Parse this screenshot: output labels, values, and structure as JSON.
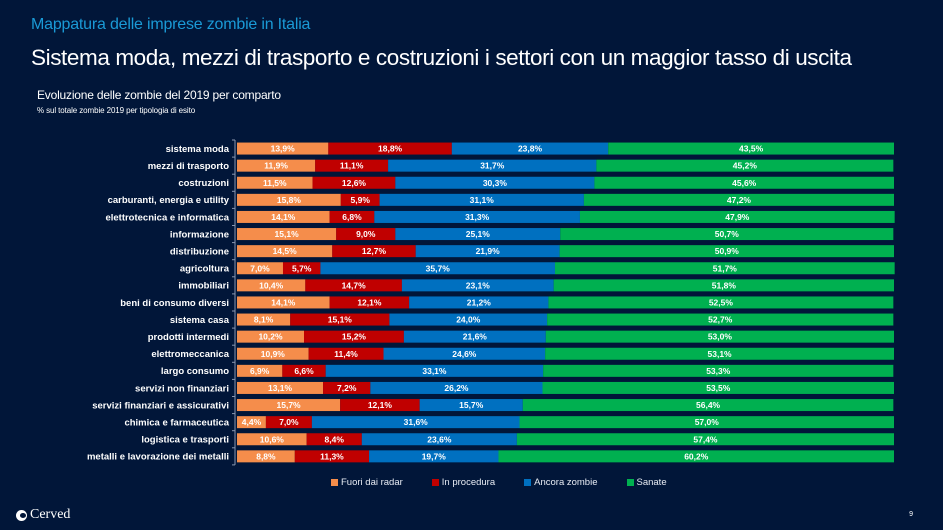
{
  "header": {
    "kicker": "Mappatura delle imprese zombie in Italia",
    "headline": "Sistema moda, mezzi di trasporto e costruzioni i settori con un maggior tasso di uscita"
  },
  "chart_data": {
    "type": "bar",
    "orientation": "horizontal",
    "stacked": "100%",
    "title": "Evoluzione delle zombie del 2019  per comparto",
    "subtitle": "% sul totale zombie 2019 per tipologia di esito",
    "xlabel": "",
    "ylabel": "",
    "xlim": [
      0,
      100
    ],
    "grid": false,
    "legend_position": "bottom",
    "categories": [
      "sistema moda",
      "mezzi di trasporto",
      "costruzioni",
      "carburanti, energia e utility",
      "elettrotecnica e informatica",
      "informazione",
      "distribuzione",
      "agricoltura",
      "immobiliari",
      "beni di consumo diversi",
      "sistema casa",
      "prodotti intermedi",
      "elettromeccanica",
      "largo consumo",
      "servizi non finanziari",
      "servizi finanziari e assicurativi",
      "chimica e farmaceutica",
      "logistica e trasporti",
      "metalli e lavorazione dei metalli"
    ],
    "series": [
      {
        "name": "Fuori dai radar",
        "color": "#f58d4b",
        "values": [
          13.9,
          11.9,
          11.5,
          15.8,
          14.1,
          15.1,
          14.5,
          7.0,
          10.4,
          14.1,
          8.1,
          10.2,
          10.9,
          6.9,
          13.1,
          15.7,
          4.4,
          10.6,
          8.8
        ]
      },
      {
        "name": "In procedura",
        "color": "#c00000",
        "values": [
          18.8,
          11.1,
          12.6,
          5.9,
          6.8,
          9.0,
          12.7,
          5.7,
          14.7,
          12.1,
          15.1,
          15.2,
          11.4,
          6.6,
          7.2,
          12.1,
          7.0,
          8.4,
          11.3
        ]
      },
      {
        "name": "Ancora zombie",
        "color": "#0070c0",
        "values": [
          23.8,
          31.7,
          30.3,
          31.1,
          31.3,
          25.1,
          21.9,
          35.7,
          23.1,
          21.2,
          24.0,
          21.6,
          24.6,
          33.1,
          26.2,
          15.7,
          31.6,
          23.6,
          19.7
        ]
      },
      {
        "name": "Sanate",
        "color": "#00b050",
        "values": [
          43.5,
          45.2,
          45.6,
          47.2,
          47.9,
          50.7,
          50.9,
          51.7,
          51.8,
          52.5,
          52.7,
          53.0,
          53.1,
          53.3,
          53.5,
          56.4,
          57.0,
          57.4,
          60.2
        ]
      }
    ],
    "value_format": "comma-decimal-percent"
  },
  "footer": {
    "logo_text": "Cerved",
    "page_number": "9"
  }
}
